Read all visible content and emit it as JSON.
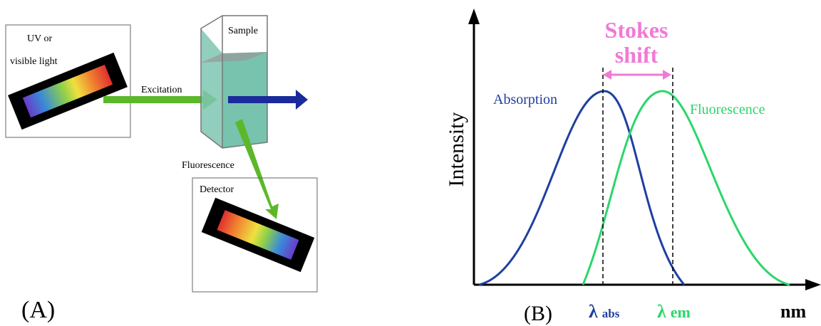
{
  "panel_a": {
    "label": "(A)",
    "source": [
      "UV or",
      "visible light"
    ],
    "excitation": "Excitation",
    "sample": "Sample",
    "fluorescence": "Fluorescence",
    "detector": "Detector"
  },
  "panel_b": {
    "label": "(B)",
    "y_axis": "Intensity",
    "x_axis": "nm",
    "stokes_shift": [
      "Stokes",
      "shift"
    ],
    "absorption": "Absorption",
    "fluorescence": "Fluorescence",
    "lambda_abs": {
      "symbol": "λ",
      "subscript": "abs"
    },
    "lambda_em": {
      "symbol": "λ",
      "subscript": "em"
    }
  }
}
